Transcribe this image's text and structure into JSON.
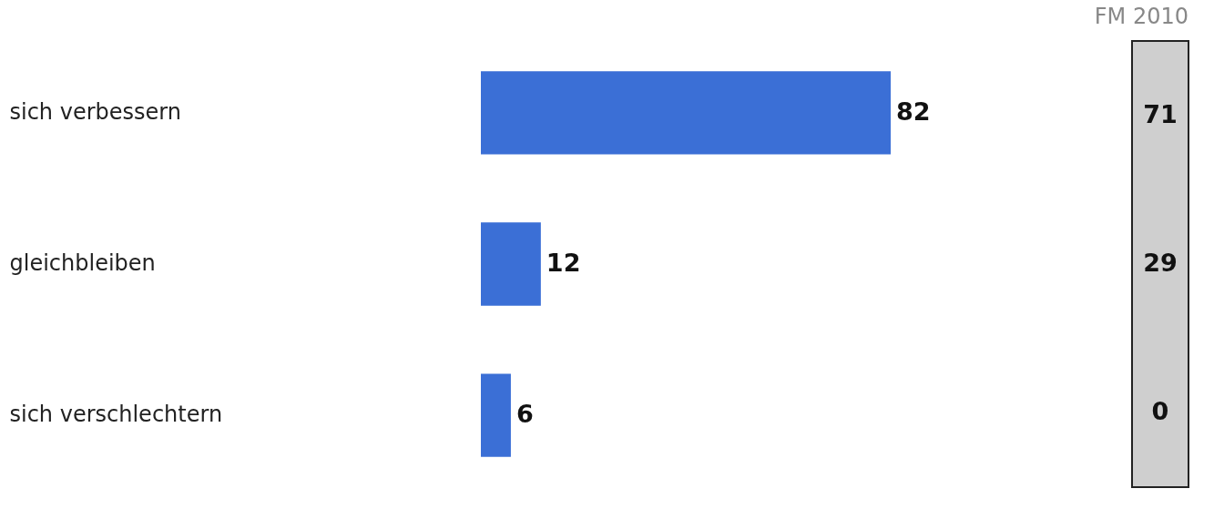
{
  "chart_data": [
    {
      "type": "bar",
      "orientation": "horizontal",
      "categories": [
        "sich verbessern",
        "gleichbleiben",
        "sich verschlechtern"
      ],
      "values": [
        82,
        12,
        6
      ],
      "color": "#3b6fd6",
      "data_labels": true
    },
    {
      "type": "other",
      "title": "FM 2010",
      "categories": [
        null,
        null,
        null
      ],
      "values": [
        71,
        29,
        0
      ],
      "data_labels": true
    }
  ]
}
